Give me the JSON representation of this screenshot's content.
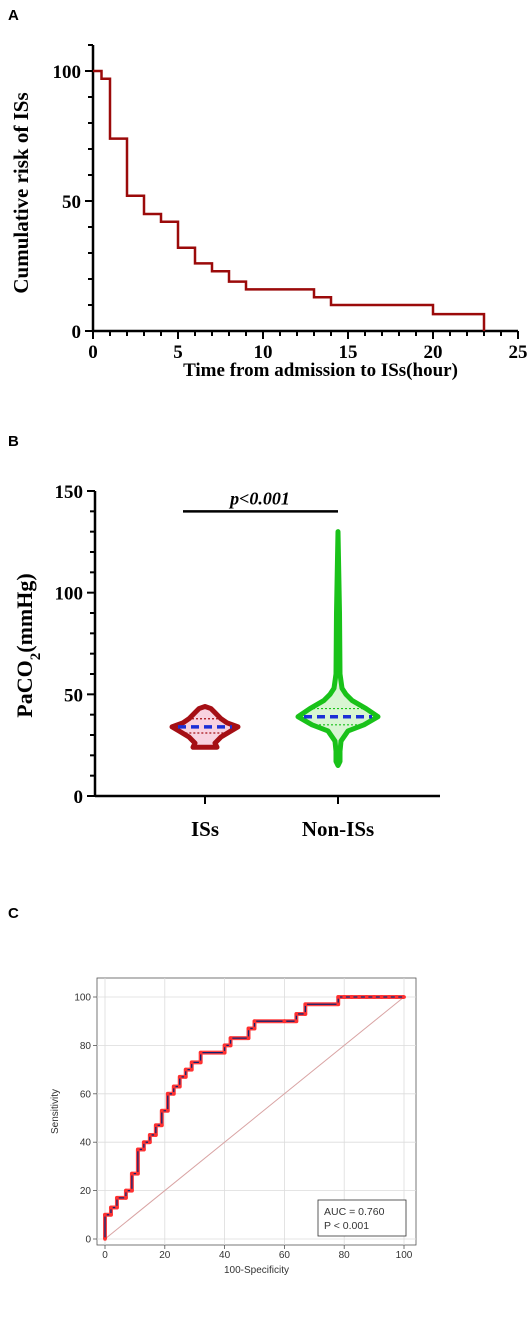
{
  "panels": {
    "a": "A",
    "b": "B",
    "c": "C"
  },
  "chart_data": [
    {
      "type": "line",
      "panel": "A",
      "title": "",
      "xlabel": "Time from admission to ISs(hour)",
      "ylabel": "Cumulative risk of ISs",
      "xlim": [
        0,
        25
      ],
      "ylim": [
        0,
        110
      ],
      "x_ticks": [
        0,
        5,
        10,
        15,
        20,
        25
      ],
      "y_ticks": [
        0,
        50,
        100
      ],
      "color": "#9b0a0a",
      "step": true,
      "series": [
        {
          "x": [
            0,
            0.5,
            1,
            2,
            3,
            4,
            5,
            6,
            7,
            8,
            9,
            13,
            14,
            20,
            23,
            23
          ],
          "y": [
            100,
            97,
            74,
            52,
            45,
            42,
            32,
            26,
            23,
            19,
            16,
            13,
            10,
            6.5,
            6.5,
            0
          ]
        }
      ]
    },
    {
      "type": "violin",
      "panel": "B",
      "title": "",
      "xlabel": "",
      "ylabel_main": "PaCO",
      "ylabel_sub": "2",
      "ylabel_unit": "(mmHg)",
      "ylim": [
        0,
        150
      ],
      "y_ticks": [
        0,
        50,
        100,
        150
      ],
      "categories": [
        "ISs",
        "Non-ISs"
      ],
      "groups": [
        {
          "name": "ISs",
          "color": "#a50f15",
          "fill": "#f8d2e0",
          "min": 24,
          "max": 44,
          "median": 34,
          "q1": 31,
          "q3": 38
        },
        {
          "name": "Non-ISs",
          "color": "#19c219",
          "fill": "#d8f5d2",
          "min": 15,
          "max": 130,
          "median": 39,
          "q1": 35,
          "q3": 43
        }
      ],
      "annotation": "p<0.001"
    },
    {
      "type": "line",
      "panel": "C",
      "title": "",
      "xlabel": "100-Specificity",
      "ylabel": "Sensitivity",
      "xlim": [
        0,
        100
      ],
      "ylim": [
        0,
        100
      ],
      "x_ticks": [
        0,
        20,
        40,
        60,
        80,
        100
      ],
      "y_ticks": [
        0,
        20,
        40,
        60,
        80,
        100
      ],
      "grid": true,
      "legend": [
        "AUC = 0.760",
        "P < 0.001"
      ],
      "diagonal_color": "#d9a3a3",
      "series": [
        {
          "x": [
            0,
            0,
            2,
            2,
            4,
            4,
            7,
            7,
            9,
            9,
            11,
            11,
            13,
            13,
            15,
            15,
            17,
            17,
            19,
            19,
            21,
            21,
            23,
            23,
            25,
            25,
            27,
            27,
            29,
            29,
            32,
            32,
            40,
            40,
            42,
            42,
            48,
            48,
            50,
            50,
            60,
            60,
            64,
            64,
            67,
            67,
            78,
            78,
            100
          ],
          "y": [
            0,
            10,
            10,
            13,
            13,
            17,
            17,
            20,
            20,
            27,
            27,
            37,
            37,
            40,
            40,
            43,
            43,
            47,
            47,
            53,
            53,
            60,
            60,
            63,
            63,
            67,
            67,
            70,
            70,
            73,
            73,
            77,
            77,
            80,
            80,
            83,
            83,
            87,
            87,
            90,
            90,
            90,
            90,
            93,
            93,
            97,
            97,
            100,
            100
          ]
        }
      ]
    }
  ]
}
